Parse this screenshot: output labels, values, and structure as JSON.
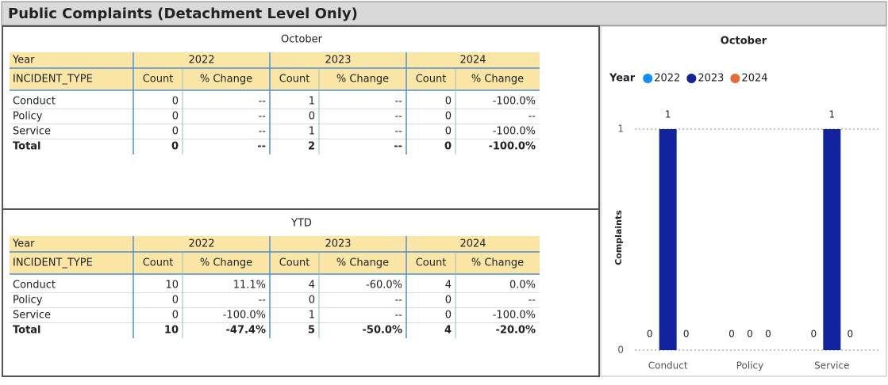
{
  "header": {
    "title": "Public Complaints (Detachment Level Only)"
  },
  "tables": [
    {
      "title": "October",
      "year_label": "Year",
      "row_label": "INCIDENT_TYPE",
      "years": [
        "2022",
        "2023",
        "2024"
      ],
      "subheaders": [
        "Count",
        "% Change"
      ],
      "rows": [
        [
          "Conduct",
          "0",
          "--",
          "1",
          "--",
          "0",
          "-100.0%"
        ],
        [
          "Policy",
          "0",
          "--",
          "0",
          "--",
          "0",
          "--"
        ],
        [
          "Service",
          "0",
          "--",
          "1",
          "--",
          "0",
          "-100.0%"
        ]
      ],
      "total": [
        "Total",
        "0",
        "--",
        "2",
        "--",
        "0",
        "-100.0%"
      ]
    },
    {
      "title": "YTD",
      "year_label": "Year",
      "row_label": "INCIDENT_TYPE",
      "years": [
        "2022",
        "2023",
        "2024"
      ],
      "subheaders": [
        "Count",
        "% Change"
      ],
      "rows": [
        [
          "Conduct",
          "10",
          "11.1%",
          "4",
          "-60.0%",
          "4",
          "0.0%"
        ],
        [
          "Policy",
          "0",
          "--",
          "0",
          "--",
          "0",
          "--"
        ],
        [
          "Service",
          "0",
          "-100.0%",
          "1",
          "--",
          "0",
          "-100.0%"
        ]
      ],
      "total": [
        "Total",
        "10",
        "-47.4%",
        "5",
        "-50.0%",
        "4",
        "-20.0%"
      ]
    }
  ],
  "chart_data": {
    "type": "bar",
    "title": "October",
    "legend_title": "Year",
    "y_label": "Complaints",
    "categories": [
      "Conduct",
      "Policy",
      "Service"
    ],
    "series": [
      {
        "name": "2022",
        "color": "#118dff",
        "values": [
          0,
          0,
          0
        ]
      },
      {
        "name": "2023",
        "color": "#12239e",
        "values": [
          1,
          0,
          1
        ]
      },
      {
        "name": "2024",
        "color": "#e66c37",
        "values": [
          0,
          0,
          0
        ]
      }
    ],
    "ylim": [
      0,
      1
    ],
    "yticks": [
      0,
      1
    ],
    "grid": true,
    "data_labels": true
  }
}
